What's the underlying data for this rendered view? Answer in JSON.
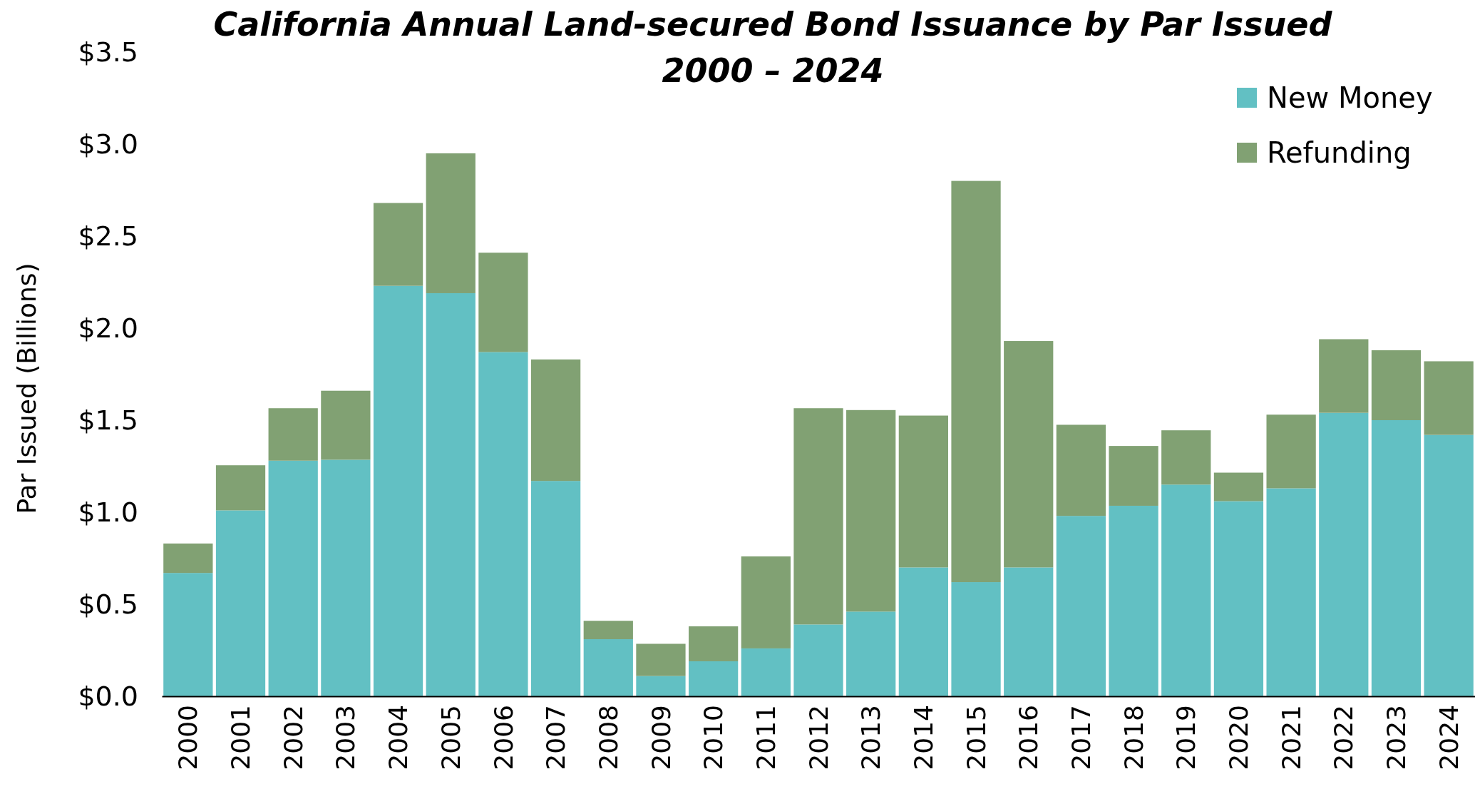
{
  "chart_data": {
    "type": "bar",
    "title": "California Annual Land-secured Bond Issuance by Par Issued",
    "subtitle": "2000 – 2024",
    "ylabel": "Par Issued (Billions)",
    "categories": [
      "2000",
      "2001",
      "2002",
      "2003",
      "2004",
      "2005",
      "2006",
      "2007",
      "2008",
      "2009",
      "2010",
      "2011",
      "2012",
      "2013",
      "2014",
      "2015",
      "2016",
      "2017",
      "2018",
      "2019",
      "2020",
      "2021",
      "2022",
      "2023",
      "2024"
    ],
    "stacked": true,
    "series": [
      {
        "name": "New Money",
        "color": "#62c0c3",
        "values": [
          0.67,
          1.01,
          1.28,
          1.285,
          2.23,
          2.19,
          1.87,
          1.17,
          0.31,
          0.11,
          0.19,
          0.26,
          0.39,
          0.46,
          0.7,
          0.62,
          0.7,
          0.98,
          1.035,
          1.15,
          1.06,
          1.13,
          1.54,
          1.5,
          1.42
        ]
      },
      {
        "name": "Refunding",
        "color": "#81a173",
        "values": [
          0.16,
          0.245,
          0.285,
          0.375,
          0.45,
          0.76,
          0.54,
          0.66,
          0.1,
          0.175,
          0.19,
          0.5,
          1.175,
          1.095,
          0.825,
          2.18,
          1.23,
          0.495,
          0.325,
          0.295,
          0.155,
          0.4,
          0.4,
          0.38,
          0.4
        ]
      }
    ],
    "ylim": [
      0,
      3.5
    ],
    "yticks": [
      {
        "value": 0,
        "label": "$0.0"
      },
      {
        "value": 0.5,
        "label": "$0.5"
      },
      {
        "value": 1,
        "label": "$1.0"
      },
      {
        "value": 1.5,
        "label": "$1.5"
      },
      {
        "value": 2,
        "label": "$2.0"
      },
      {
        "value": 2.5,
        "label": "$2.5"
      },
      {
        "value": 3,
        "label": "$3.0"
      },
      {
        "value": 3.5,
        "label": "$3.5"
      }
    ],
    "grid": false,
    "legend": "top right"
  }
}
